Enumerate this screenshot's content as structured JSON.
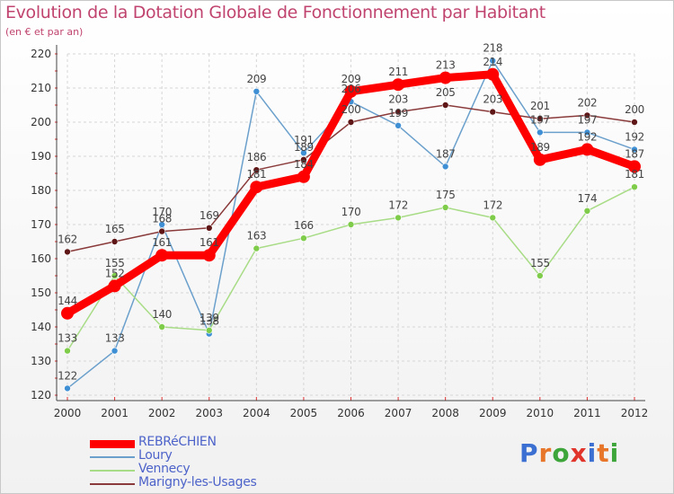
{
  "header": {
    "title": "Evolution de la Dotation Globale de Fonctionnement par Habitant",
    "subtitle": "(en € et par an)"
  },
  "logo": {
    "text": "Proxiti",
    "letter_colors": [
      "#3b6fd1",
      "#e7762a",
      "#3ea53a",
      "#e1352b",
      "#3b6fd1",
      "#e7762a",
      "#3ea53a"
    ]
  },
  "chart_data": {
    "type": "line",
    "title": "Evolution de la Dotation Globale de Fonctionnement par Habitant",
    "subtitle": "(en € et par an)",
    "xlabel": "",
    "ylabel": "",
    "x": [
      "2000",
      "2001",
      "2002",
      "2003",
      "2004",
      "2005",
      "2006",
      "2007",
      "2008",
      "2009",
      "2010",
      "2011",
      "2012"
    ],
    "ylim": [
      120,
      220
    ],
    "yticks": [
      120,
      130,
      140,
      150,
      160,
      170,
      180,
      190,
      200,
      210,
      220
    ],
    "grid": true,
    "legend_position": "bottom-left",
    "series": [
      {
        "name": "REBRéCHIEN",
        "color": "#ff0000",
        "marker": "#ff0000",
        "emphasis": true,
        "values": [
          144,
          152,
          161,
          161,
          181,
          184,
          209,
          211,
          213,
          214,
          189,
          192,
          187
        ],
        "labels": [
          "144",
          "152",
          "161",
          "161",
          "181",
          "184",
          "209",
          "211",
          "213",
          "214",
          "189",
          "192",
          "187"
        ]
      },
      {
        "name": "Loury",
        "color": "#6ba0cc",
        "marker": "#3f8fd4",
        "emphasis": false,
        "values": [
          122,
          133,
          170,
          138,
          209,
          191,
          206,
          199,
          187,
          218,
          197,
          197,
          192
        ],
        "labels": [
          "122",
          "133",
          "170",
          "138",
          "209",
          "191",
          "206",
          "199",
          "187",
          "218",
          "197",
          "197",
          "192"
        ]
      },
      {
        "name": "Vennecy",
        "color": "#a8dc86",
        "marker": "#7fcc4a",
        "emphasis": false,
        "values": [
          133,
          155,
          140,
          139,
          163,
          166,
          170,
          172,
          175,
          172,
          155,
          174,
          181
        ],
        "labels": [
          "133",
          "155",
          "140",
          "139",
          "163",
          "166",
          "170",
          "172",
          "175",
          "172",
          "155",
          "174",
          "181"
        ]
      },
      {
        "name": "Marigny-les-Usages",
        "color": "#8a3a3a",
        "marker": "#5e1616",
        "emphasis": false,
        "values": [
          162,
          165,
          168,
          169,
          186,
          189,
          200,
          203,
          205,
          203,
          201,
          202,
          200
        ],
        "labels": [
          "162",
          "165",
          "168",
          "169",
          "186",
          "189",
          "200",
          "203",
          "205",
          "203",
          "201",
          "202",
          "200"
        ]
      }
    ]
  }
}
